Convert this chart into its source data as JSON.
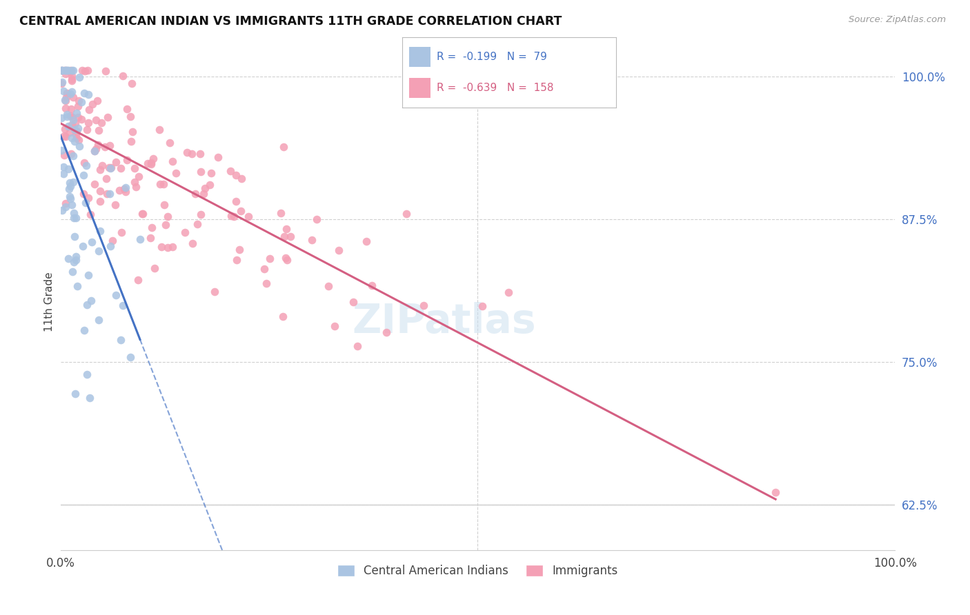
{
  "title": "CENTRAL AMERICAN INDIAN VS IMMIGRANTS 11TH GRADE CORRELATION CHART",
  "source": "Source: ZipAtlas.com",
  "ylabel": "11th Grade",
  "ytick_labels": [
    "100.0%",
    "87.5%",
    "75.0%",
    "62.5%"
  ],
  "ytick_values": [
    1.0,
    0.875,
    0.75,
    0.625
  ],
  "xlim": [
    0.0,
    1.0
  ],
  "ylim": [
    0.585,
    1.02
  ],
  "blue_R": -0.199,
  "blue_N": 79,
  "pink_R": -0.639,
  "pink_N": 158,
  "blue_color": "#aac4e2",
  "pink_color": "#f4a0b5",
  "blue_line_color": "#4472c4",
  "pink_line_color": "#d45f82",
  "legend_label_blue": "Central American Indians",
  "legend_label_pink": "Immigrants"
}
